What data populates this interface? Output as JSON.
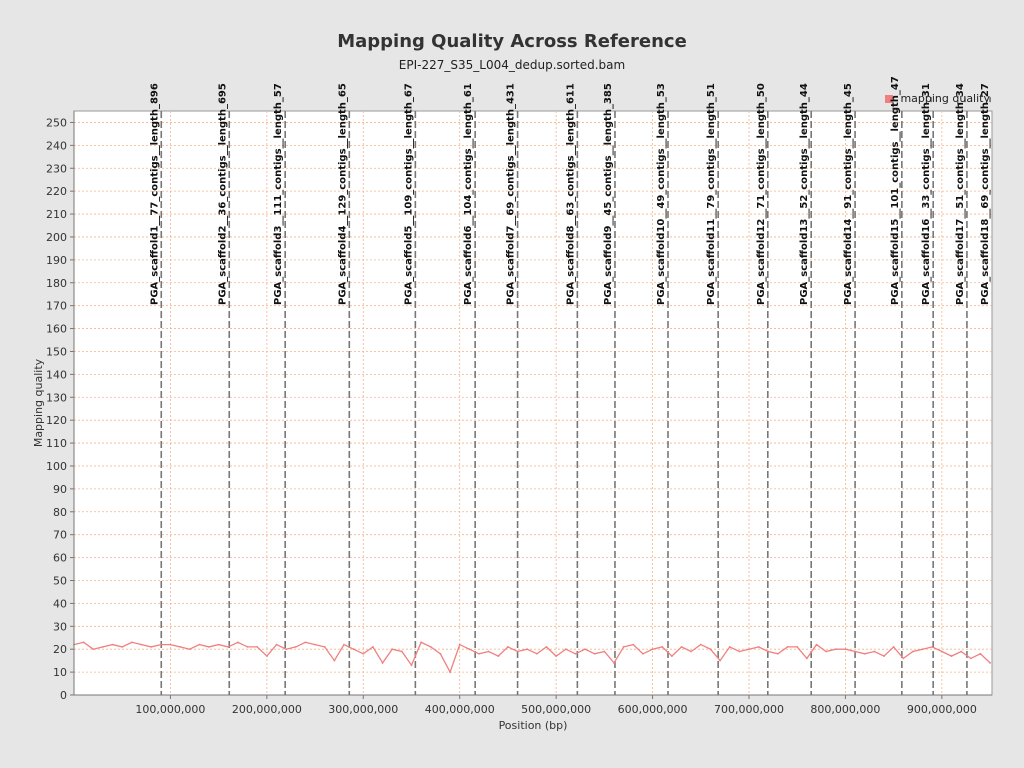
{
  "chart_data": {
    "type": "line",
    "title": "Mapping Quality Across Reference",
    "subtitle": "EPI-227_S35_L004_dedup.sorted.bam",
    "xlabel": "Position (bp)",
    "ylabel": "Mapping quality",
    "xlim": [
      0,
      952000000
    ],
    "ylim": [
      0,
      255
    ],
    "grid": true,
    "legend_position": "top-right",
    "y_ticks": [
      0,
      10,
      20,
      30,
      40,
      50,
      60,
      70,
      80,
      90,
      100,
      110,
      120,
      130,
      140,
      150,
      160,
      170,
      180,
      190,
      200,
      210,
      220,
      230,
      240,
      250
    ],
    "x_ticks": [
      {
        "value": 100000000,
        "label": "100,000,000"
      },
      {
        "value": 200000000,
        "label": "200,000,000"
      },
      {
        "value": 300000000,
        "label": "300,000,000"
      },
      {
        "value": 400000000,
        "label": "400,000,000"
      },
      {
        "value": 500000000,
        "label": "500,000,000"
      },
      {
        "value": 600000000,
        "label": "600,000,000"
      },
      {
        "value": 700000000,
        "label": "700,000,000"
      },
      {
        "value": 800000000,
        "label": "800,000,000"
      },
      {
        "value": 900000000,
        "label": "900,000,000"
      }
    ],
    "series": [
      {
        "name": "mapping quality",
        "color": "#f08080",
        "x": [
          0,
          10000000,
          20000000,
          30000000,
          40000000,
          50000000,
          60000000,
          70000000,
          80000000,
          90000000,
          100000000,
          110000000,
          120000000,
          130000000,
          140000000,
          150000000,
          160000000,
          170000000,
          180000000,
          190000000,
          200000000,
          210000000,
          220000000,
          230000000,
          240000000,
          250000000,
          260000000,
          270000000,
          280000000,
          290000000,
          300000000,
          310000000,
          320000000,
          330000000,
          340000000,
          350000000,
          360000000,
          370000000,
          380000000,
          390000000,
          400000000,
          410000000,
          420000000,
          430000000,
          440000000,
          450000000,
          460000000,
          470000000,
          480000000,
          490000000,
          500000000,
          510000000,
          520000000,
          530000000,
          540000000,
          550000000,
          560000000,
          570000000,
          580000000,
          590000000,
          600000000,
          610000000,
          620000000,
          630000000,
          640000000,
          650000000,
          660000000,
          670000000,
          680000000,
          690000000,
          700000000,
          710000000,
          720000000,
          730000000,
          740000000,
          750000000,
          760000000,
          770000000,
          780000000,
          790000000,
          800000000,
          810000000,
          820000000,
          830000000,
          840000000,
          850000000,
          860000000,
          870000000,
          880000000,
          890000000,
          900000000,
          910000000,
          920000000,
          930000000,
          940000000,
          950000000
        ],
        "y": [
          22,
          23,
          20,
          21,
          22,
          21,
          23,
          22,
          21,
          22,
          22,
          21,
          20,
          22,
          21,
          22,
          21,
          23,
          21,
          21,
          17,
          22,
          20,
          21,
          23,
          22,
          21,
          15,
          22,
          20,
          18,
          21,
          14,
          20,
          19,
          13,
          23,
          21,
          18,
          10,
          22,
          20,
          18,
          19,
          17,
          21,
          19,
          20,
          18,
          21,
          17,
          20,
          18,
          20,
          18,
          19,
          14,
          21,
          22,
          18,
          20,
          21,
          17,
          21,
          19,
          22,
          20,
          15,
          21,
          19,
          20,
          21,
          19,
          18,
          21,
          21,
          16,
          22,
          19,
          20,
          20,
          19,
          18,
          19,
          17,
          21,
          16,
          19,
          20,
          21,
          19,
          17,
          19,
          16,
          18,
          14
        ]
      }
    ],
    "contigs": [
      {
        "start": 0,
        "label": "PGA_scaffold1__77_contigs__length_896"
      },
      {
        "start": 90500000,
        "label": "PGA_scaffold2__36_contigs__length_695"
      },
      {
        "start": 161000000,
        "label": "PGA_scaffold3__111_contigs__length_57"
      },
      {
        "start": 219000000,
        "label": "PGA_scaffold4__129_contigs__length_65"
      },
      {
        "start": 285500000,
        "label": "PGA_scaffold5__109_contigs__length_67"
      },
      {
        "start": 354000000,
        "label": "PGA_scaffold6__104_contigs__length_61"
      },
      {
        "start": 416000000,
        "label": "PGA_scaffold7__69_contigs__length_431"
      },
      {
        "start": 460000000,
        "label": "PGA_scaffold8__63_contigs__length_611"
      },
      {
        "start": 522000000,
        "label": "PGA_scaffold9__45_contigs__length_385"
      },
      {
        "start": 561000000,
        "label": "PGA_scaffold10__49_contigs__length_53"
      },
      {
        "start": 616000000,
        "label": "PGA_scaffold11__79_contigs__length_51"
      },
      {
        "start": 668000000,
        "label": "PGA_scaffold12__71_contigs__length_50"
      },
      {
        "start": 719500000,
        "label": "PGA_scaffold13__52_contigs__length_44"
      },
      {
        "start": 764500000,
        "label": "PGA_scaffold14__91_contigs__length_45"
      },
      {
        "start": 810000000,
        "label": "PGA_scaffold15__101_contigs__length_47"
      },
      {
        "start": 858500000,
        "label": "PGA_scaffold16__33_contigs__length_31"
      },
      {
        "start": 891000000,
        "label": "PGA_scaffold17__51_contigs__length_34"
      },
      {
        "start": 926000000,
        "label": "PGA_scaffold18__69_contigs__length_27"
      }
    ]
  }
}
